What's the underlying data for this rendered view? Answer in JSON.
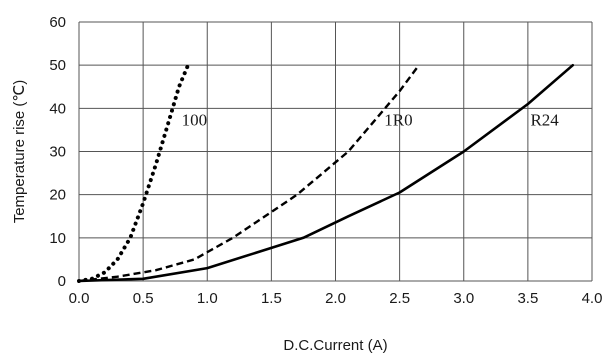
{
  "chart_data": {
    "type": "line",
    "title": "",
    "xlabel": "D.C.Current (A)",
    "ylabel": "Temperature rise (℃)",
    "xlim": [
      0,
      4
    ],
    "ylim": [
      0,
      60
    ],
    "x_ticks": [
      "0.0",
      "0.5",
      "1.0",
      "1.5",
      "2.0",
      "2.5",
      "3.0",
      "3.5",
      "4.0"
    ],
    "y_ticks": [
      "0",
      "10",
      "20",
      "30",
      "40",
      "50",
      "60"
    ],
    "grid": true,
    "legend": "none",
    "series": [
      {
        "name": "100",
        "style": "dotted",
        "color": "#000000",
        "points": [
          [
            0.0,
            0
          ],
          [
            0.1,
            0.5
          ],
          [
            0.2,
            2
          ],
          [
            0.3,
            5
          ],
          [
            0.4,
            10
          ],
          [
            0.5,
            18
          ],
          [
            0.6,
            27
          ],
          [
            0.7,
            37
          ],
          [
            0.78,
            45
          ],
          [
            0.85,
            50
          ]
        ]
      },
      {
        "name": "1R0",
        "style": "dashed",
        "color": "#000000",
        "points": [
          [
            0.0,
            0
          ],
          [
            0.3,
            1
          ],
          [
            0.6,
            2.5
          ],
          [
            0.9,
            5
          ],
          [
            1.2,
            10
          ],
          [
            1.45,
            15
          ],
          [
            1.7,
            20
          ],
          [
            1.9,
            25
          ],
          [
            2.1,
            30
          ],
          [
            2.3,
            37
          ],
          [
            2.5,
            44
          ],
          [
            2.65,
            50
          ]
        ]
      },
      {
        "name": "R24",
        "style": "solid",
        "color": "#000000",
        "points": [
          [
            0.0,
            0
          ],
          [
            0.5,
            0.5
          ],
          [
            1.0,
            3
          ],
          [
            1.75,
            10
          ],
          [
            2.1,
            15
          ],
          [
            2.5,
            20.5
          ],
          [
            3.0,
            30
          ],
          [
            3.5,
            41
          ],
          [
            3.85,
            50
          ]
        ]
      }
    ]
  }
}
